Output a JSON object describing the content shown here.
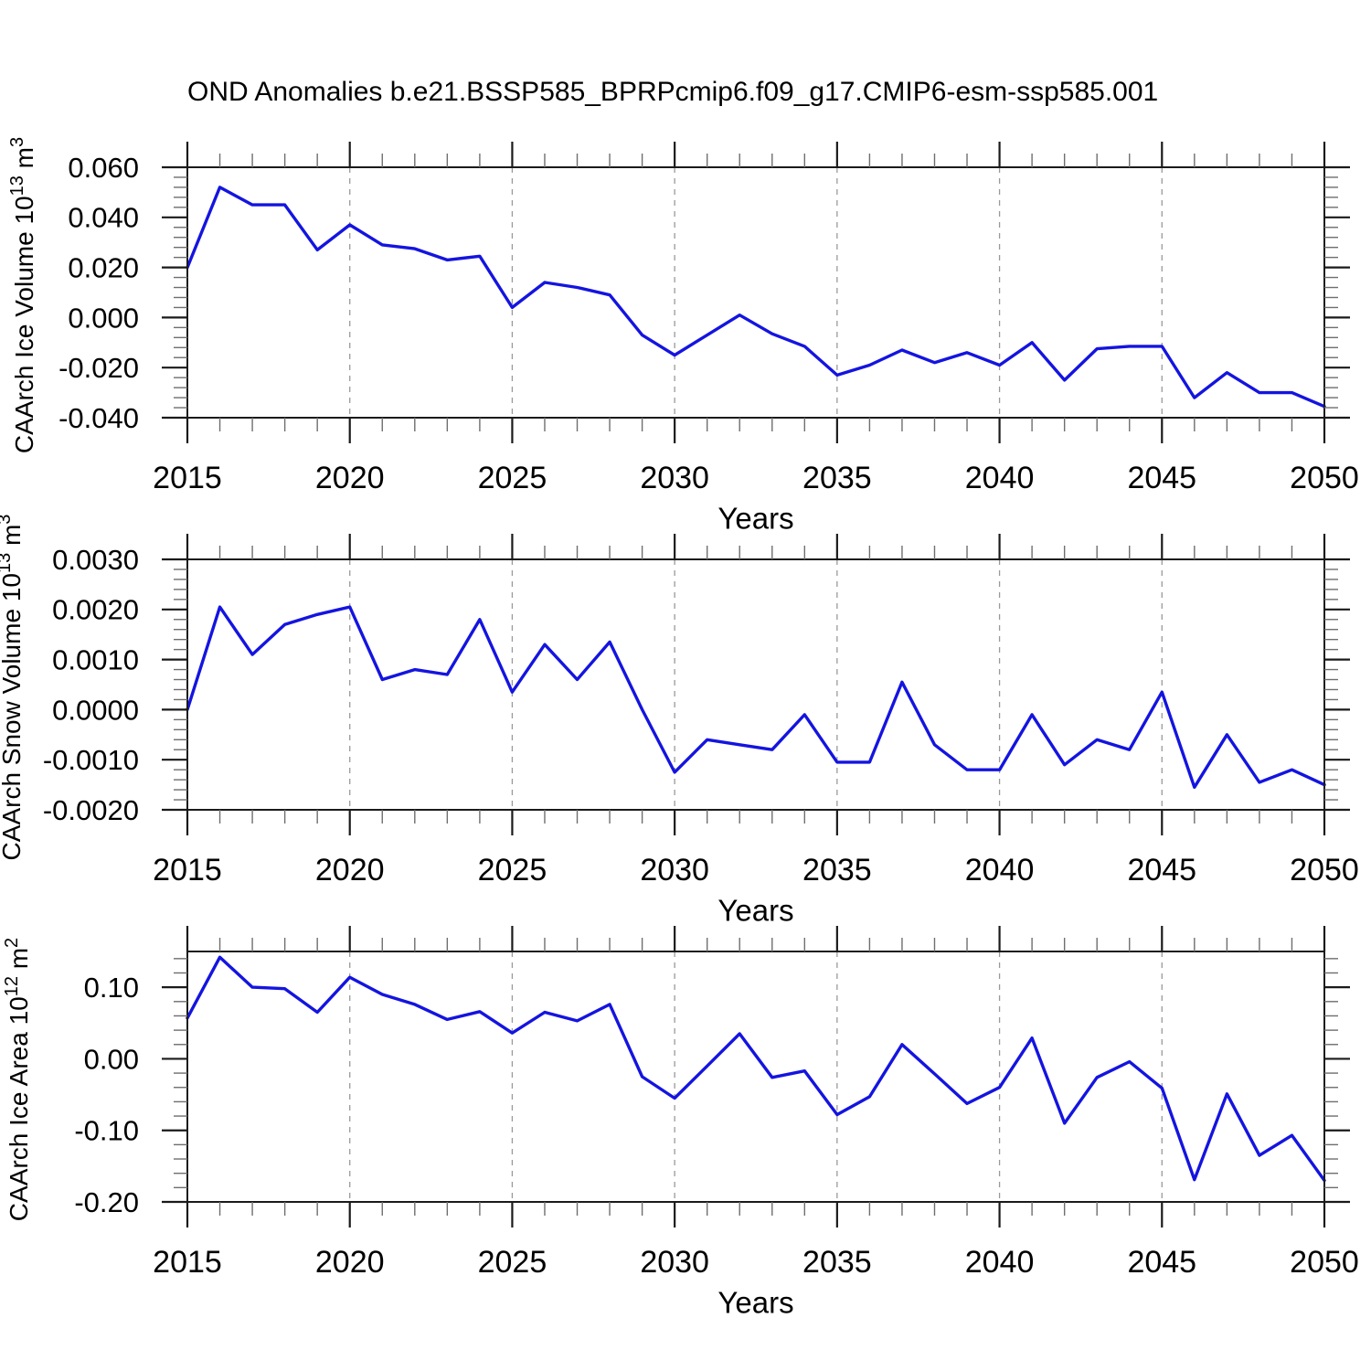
{
  "title": "OND Anomalies b.e21.BSSP585_BPRPcmip6.f09_g17.CMIP6-esm-ssp585.001",
  "colors": {
    "line": "#1414e0",
    "axis": "#1a1a1a",
    "minor_tick": "#6e6e6e",
    "grid": "#999999",
    "background": "#ffffff"
  },
  "x": {
    "label": "Years",
    "range": [
      2015,
      2050
    ],
    "major_ticks": [
      2015,
      2020,
      2025,
      2030,
      2035,
      2040,
      2045,
      2050
    ],
    "tick_labels": [
      "2015",
      "2020",
      "2025",
      "2030",
      "2035",
      "2040",
      "2045",
      "2050"
    ],
    "grid_years": [
      2020,
      2025,
      2030,
      2035,
      2040,
      2045
    ],
    "minor_step": 1
  },
  "years": [
    2015,
    2016,
    2017,
    2018,
    2019,
    2020,
    2021,
    2022,
    2023,
    2024,
    2025,
    2026,
    2027,
    2028,
    2029,
    2030,
    2031,
    2032,
    2033,
    2034,
    2035,
    2036,
    2037,
    2038,
    2039,
    2040,
    2041,
    2042,
    2043,
    2044,
    2045,
    2046,
    2047,
    2048,
    2049,
    2050
  ],
  "chart_data": [
    {
      "type": "line",
      "title": "",
      "xlabel": "Years",
      "ylabel_text": "CAArch Ice Volume 10^13 m^3",
      "ylabel_parts": [
        {
          "text": "CAArch Ice Volume 10",
          "sup": false
        },
        {
          "text": "13",
          "sup": true
        },
        {
          "text": " m",
          "sup": false
        },
        {
          "text": "3",
          "sup": true
        }
      ],
      "ylim": [
        -0.04,
        0.06
      ],
      "y_major_step": 0.02,
      "y_minor_step": 0.004,
      "y_tick_labels": [
        "0.060",
        "0.040",
        "0.020",
        "0.000",
        "-0.020",
        "-0.040"
      ],
      "grid": true,
      "legend": "none",
      "values": [
        0.02,
        0.052,
        0.045,
        0.045,
        0.027,
        0.037,
        0.029,
        0.0275,
        0.023,
        0.0245,
        0.004,
        0.014,
        0.012,
        0.009,
        -0.007,
        -0.015,
        -0.007,
        0.001,
        -0.0065,
        -0.0115,
        -0.023,
        -0.019,
        -0.013,
        -0.018,
        -0.014,
        -0.019,
        -0.01,
        -0.025,
        -0.0125,
        -0.0115,
        -0.0115,
        -0.032,
        -0.022,
        -0.03,
        -0.03,
        -0.0355
      ]
    },
    {
      "type": "line",
      "title": "",
      "xlabel": "Years",
      "ylabel_text": "CAArch Snow Volume 10^13 m^3",
      "ylabel_parts": [
        {
          "text": "CAArch Snow Volume 10",
          "sup": false
        },
        {
          "text": "13",
          "sup": true
        },
        {
          "text": " m",
          "sup": false
        },
        {
          "text": "3",
          "sup": true
        }
      ],
      "ylim": [
        -0.002,
        0.003
      ],
      "y_major_step": 0.001,
      "y_minor_step": 0.0002,
      "y_tick_labels": [
        "0.0030",
        "0.0020",
        "0.0010",
        "0.0000",
        "-0.0010",
        "-0.0020"
      ],
      "grid": true,
      "legend": "none",
      "values": [
        0.0,
        0.00205,
        0.0011,
        0.0017,
        0.0019,
        0.00205,
        0.0006,
        0.0008,
        0.0007,
        0.0018,
        0.00035,
        0.0013,
        0.0006,
        0.00135,
        0.0,
        -0.00125,
        -0.0006,
        -0.0007,
        -0.0008,
        -0.0001,
        -0.00105,
        -0.00105,
        0.00055,
        -0.0007,
        -0.0012,
        -0.0012,
        -0.0001,
        -0.0011,
        -0.0006,
        -0.0008,
        0.00035,
        -0.00155,
        -0.0005,
        -0.00145,
        -0.0012,
        -0.0015
      ]
    },
    {
      "type": "line",
      "title": "",
      "xlabel": "Years",
      "ylabel_text": "CAArch Ice Area 10^12 m^2",
      "ylabel_parts": [
        {
          "text": "CAArch Ice Area 10",
          "sup": false
        },
        {
          "text": "12",
          "sup": true
        },
        {
          "text": " m",
          "sup": false
        },
        {
          "text": "2",
          "sup": true
        }
      ],
      "ylim": [
        -0.2,
        0.15
      ],
      "y_major_step": 0.1,
      "y_minor_step": 0.02,
      "y_tick_labels": [
        "0.10",
        "0.00",
        "-0.10",
        "-0.20"
      ],
      "grid": true,
      "legend": "none",
      "values": [
        0.057,
        0.142,
        0.1,
        0.098,
        0.065,
        0.114,
        0.09,
        0.076,
        0.055,
        0.066,
        0.036,
        0.065,
        0.053,
        0.076,
        -0.025,
        -0.055,
        -0.01,
        0.035,
        -0.026,
        -0.017,
        -0.078,
        -0.053,
        0.02,
        -0.021,
        -0.0625,
        -0.04,
        0.029,
        -0.09,
        -0.026,
        -0.004,
        -0.041,
        -0.169,
        -0.049,
        -0.135,
        -0.107,
        -0.17
      ]
    }
  ]
}
